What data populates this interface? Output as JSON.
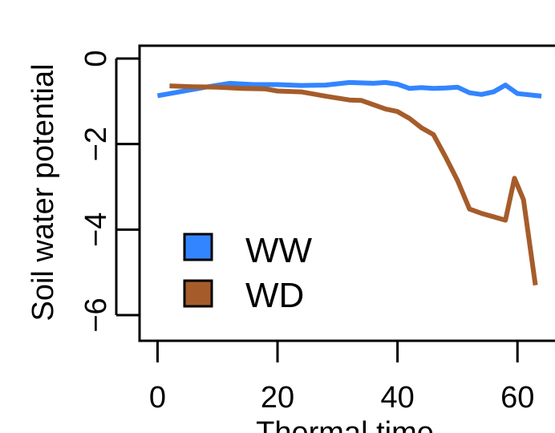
{
  "chart_data": {
    "type": "line",
    "title": "",
    "xlabel": "Thermal time",
    "ylabel": "Soil water potential",
    "xlim": [
      -3,
      70
    ],
    "ylim": [
      -6.6,
      0.3
    ],
    "xticks": [
      0,
      20,
      40,
      60
    ],
    "yticks": [
      0,
      -2,
      -4,
      -6
    ],
    "xtick_labels": [
      "0",
      "20",
      "40",
      "60"
    ],
    "ytick_labels": [
      "0",
      "−2",
      "−4",
      "−6"
    ],
    "grid": false,
    "legend_position": "bottom-left",
    "series": [
      {
        "name": "WW",
        "color": "#3385ff",
        "x": [
          0,
          4,
          8,
          12,
          16,
          20,
          24,
          28,
          32,
          36,
          38,
          40,
          42,
          44,
          46,
          48,
          50,
          52,
          54,
          56,
          58,
          60,
          64
        ],
        "y": [
          -0.87,
          -0.77,
          -0.67,
          -0.58,
          -0.61,
          -0.61,
          -0.63,
          -0.62,
          -0.56,
          -0.58,
          -0.56,
          -0.6,
          -0.7,
          -0.68,
          -0.7,
          -0.69,
          -0.67,
          -0.8,
          -0.84,
          -0.78,
          -0.62,
          -0.82,
          -0.88
        ]
      },
      {
        "name": "WD",
        "color": "#a65c2a",
        "x": [
          2,
          6,
          10,
          14,
          18,
          20,
          24,
          28,
          32,
          34,
          38,
          40,
          42,
          44,
          46,
          48,
          50,
          52,
          54,
          56,
          58,
          59.5,
          61,
          63
        ],
        "y": [
          -0.64,
          -0.66,
          -0.67,
          -0.7,
          -0.71,
          -0.76,
          -0.78,
          -0.88,
          -0.97,
          -0.98,
          -1.18,
          -1.24,
          -1.4,
          -1.62,
          -1.78,
          -2.3,
          -2.85,
          -3.52,
          -3.62,
          -3.7,
          -3.78,
          -2.8,
          -3.3,
          -5.3
        ]
      }
    ]
  }
}
